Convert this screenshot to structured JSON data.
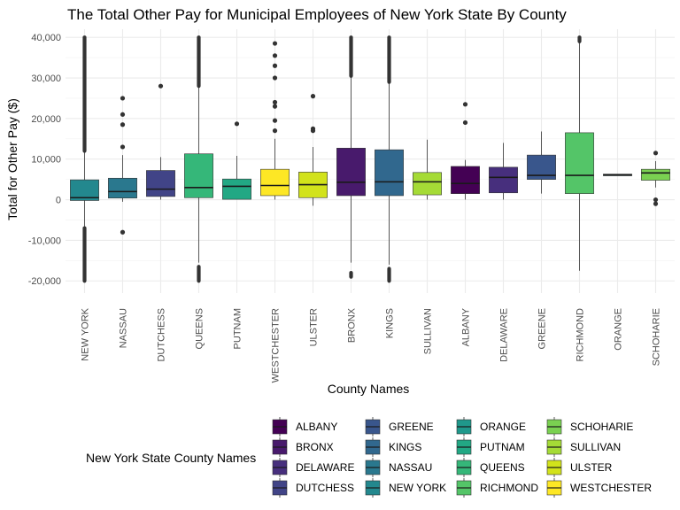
{
  "chart_data": {
    "type": "boxplot",
    "title": "The Total Other Pay for Municipal Employees of New York State By County",
    "xlabel": "County Names",
    "ylabel": "Total for Other Pay ($)",
    "ylim": [
      -23000,
      42000
    ],
    "yticks": [
      -20000,
      -10000,
      0,
      10000,
      20000,
      30000,
      40000
    ],
    "ytick_labels": [
      "-20,000",
      "-10,000",
      "0",
      "10,000",
      "20,000",
      "30,000",
      "40,000"
    ],
    "grid": true,
    "legend": {
      "title": "New York State County Names",
      "position": "bottom",
      "columns": [
        [
          "ALBANY",
          "BRONX",
          "DELAWARE",
          "DUTCHESS"
        ],
        [
          "GREENE",
          "KINGS",
          "NASSAU",
          "NEW YORK"
        ],
        [
          "ORANGE",
          "PUTNAM",
          "QUEENS",
          "RICHMOND"
        ],
        [
          "SCHOHARIE",
          "SULLIVAN",
          "ULSTER",
          "WESTCHESTER"
        ]
      ]
    },
    "colors": {
      "ALBANY": "#440154",
      "BRONX": "#481A6C",
      "DELAWARE": "#472F7D",
      "DUTCHESS": "#414487",
      "GREENE": "#39568C",
      "KINGS": "#31688E",
      "NASSAU": "#2A788E",
      "NEW YORK": "#23888E",
      "ORANGE": "#1F988B",
      "PUTNAM": "#22A884",
      "QUEENS": "#35B779",
      "RICHMOND": "#54C568",
      "SCHOHARIE": "#7AD151",
      "SULLIVAN": "#A5DB36",
      "ULSTER": "#D2E21B",
      "WESTCHESTER": "#FDE725"
    },
    "boxes": [
      {
        "name": "NEW YORK",
        "q1": -200,
        "median": 500,
        "q3": 4900,
        "whisker_low": -7000,
        "whisker_high": 12000,
        "outlier_ranges": [
          [
            12000,
            40000
          ],
          [
            -20000,
            -7000
          ]
        ],
        "outliers": []
      },
      {
        "name": "NASSAU",
        "q1": 400,
        "median": 2000,
        "q3": 5300,
        "whisker_low": -500,
        "whisker_high": 11000,
        "outlier_ranges": [],
        "outliers": [
          25000,
          21000,
          18500,
          13000,
          -8000
        ]
      },
      {
        "name": "DUTCHESS",
        "q1": 800,
        "median": 2600,
        "q3": 7200,
        "whisker_low": 0,
        "whisker_high": 10500,
        "outlier_ranges": [],
        "outliers": [
          28000
        ]
      },
      {
        "name": "QUEENS",
        "q1": 500,
        "median": 3000,
        "q3": 11300,
        "whisker_low": -15500,
        "whisker_high": 28000,
        "outlier_ranges": [
          [
            28000,
            40000
          ],
          [
            -20000,
            -16500
          ]
        ],
        "outliers": []
      },
      {
        "name": "PUTNAM",
        "q1": 100,
        "median": 3300,
        "q3": 5100,
        "whisker_low": 0,
        "whisker_high": 10800,
        "outlier_ranges": [],
        "outliers": [
          18700
        ]
      },
      {
        "name": "WESTCHESTER",
        "q1": 1000,
        "median": 3500,
        "q3": 7500,
        "whisker_low": 0,
        "whisker_high": 15000,
        "outlier_ranges": [],
        "outliers": [
          38500,
          35500,
          33000,
          30000,
          24000,
          23000,
          19500,
          17000
        ]
      },
      {
        "name": "ULSTER",
        "q1": 500,
        "median": 3700,
        "q3": 6800,
        "whisker_low": -1500,
        "whisker_high": 13000,
        "outlier_ranges": [],
        "outliers": [
          25500,
          17500,
          17000
        ]
      },
      {
        "name": "BRONX",
        "q1": 1000,
        "median": 4300,
        "q3": 12700,
        "whisker_low": -15500,
        "whisker_high": 30500,
        "outlier_ranges": [
          [
            30500,
            40000
          ],
          [
            -19000,
            -18000
          ]
        ],
        "outliers": []
      },
      {
        "name": "KINGS",
        "q1": 1000,
        "median": 4400,
        "q3": 12300,
        "whisker_low": -16000,
        "whisker_high": 29000,
        "outlier_ranges": [
          [
            29000,
            40000
          ],
          [
            -20000,
            -17000
          ]
        ],
        "outliers": []
      },
      {
        "name": "SULLIVAN",
        "q1": 1200,
        "median": 4400,
        "q3": 6700,
        "whisker_low": 0,
        "whisker_high": 14800,
        "outlier_ranges": [],
        "outliers": []
      },
      {
        "name": "ALBANY",
        "q1": 1500,
        "median": 4000,
        "q3": 8200,
        "whisker_low": 0,
        "whisker_high": 9800,
        "outlier_ranges": [],
        "outliers": [
          23500,
          19000
        ]
      },
      {
        "name": "DELAWARE",
        "q1": 1700,
        "median": 5500,
        "q3": 8000,
        "whisker_low": 0,
        "whisker_high": 14000,
        "outlier_ranges": [],
        "outliers": []
      },
      {
        "name": "GREENE",
        "q1": 5000,
        "median": 6000,
        "q3": 11000,
        "whisker_low": 1500,
        "whisker_high": 16800,
        "outlier_ranges": [],
        "outliers": []
      },
      {
        "name": "RICHMOND",
        "q1": 1500,
        "median": 6000,
        "q3": 16500,
        "whisker_low": -17500,
        "whisker_high": 39000,
        "outlier_ranges": [
          [
            39000,
            40000
          ]
        ],
        "outliers": []
      },
      {
        "name": "ORANGE",
        "q1": 5900,
        "median": 6100,
        "q3": 6300,
        "whisker_low": 5900,
        "whisker_high": 6300,
        "outlier_ranges": [],
        "outliers": []
      },
      {
        "name": "SCHOHARIE",
        "q1": 4800,
        "median": 6600,
        "q3": 7500,
        "whisker_low": 3000,
        "whisker_high": 9500,
        "outlier_ranges": [],
        "outliers": [
          11500,
          0,
          -1000
        ]
      }
    ]
  }
}
